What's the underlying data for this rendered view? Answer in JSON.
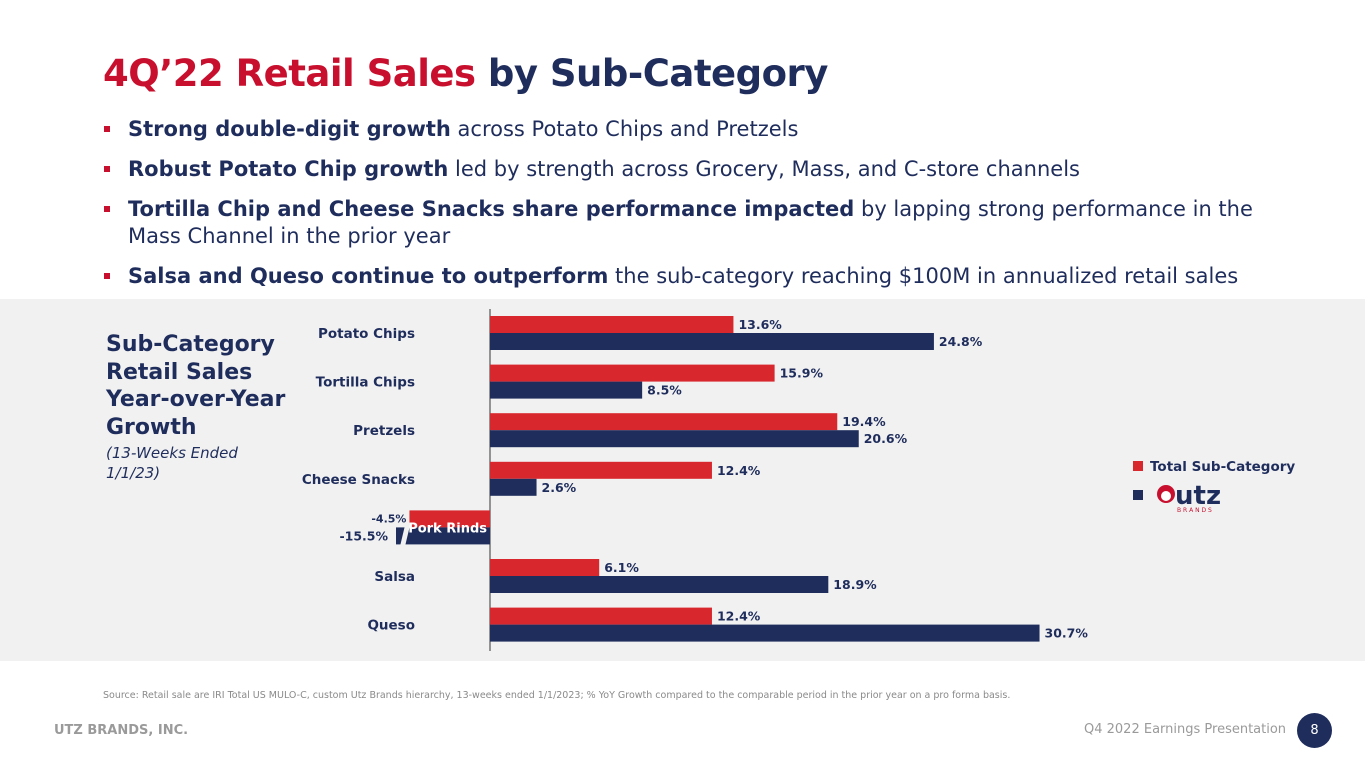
{
  "title": {
    "part1": "4Q’22 Retail Sales",
    "part2": "by Sub-Category"
  },
  "bullets": [
    {
      "bold": "Strong double-digit growth",
      "rest": " across Potato Chips and Pretzels"
    },
    {
      "bold": "Robust Potato Chip growth",
      "rest": " led by strength across Grocery, Mass, and C-store channels"
    },
    {
      "bold": "Tortilla Chip and Cheese Snacks share performance impacted",
      "rest": " by lapping strong performance in the Mass Channel in the prior year"
    },
    {
      "bold": "Salsa and Queso continue to outperform",
      "rest": " the sub-category reaching $100M in annualized retail sales"
    }
  ],
  "subheading": {
    "title": "Sub-Category Retail Sales Year-over-Year Growth",
    "period": "(13-Weeks Ended 1/1/23)"
  },
  "chart_data": {
    "type": "bar",
    "orientation": "horizontal",
    "categories": [
      "Potato Chips",
      "Tortilla Chips",
      "Pretzels",
      "Cheese Snacks",
      "Pork Rinds",
      "Salsa",
      "Queso"
    ],
    "series": [
      {
        "name": "Total Sub-Category",
        "color": "#d9272e",
        "values": [
          13.6,
          15.9,
          19.4,
          12.4,
          -4.5,
          6.1,
          12.4
        ],
        "labels": [
          "13.6%",
          "15.9%",
          "19.4%",
          "12.4%",
          "-4.5%",
          "6.1%",
          "12.4%"
        ]
      },
      {
        "name": "Utz Brands",
        "color": "#1f2d5c",
        "values": [
          24.8,
          8.5,
          20.6,
          2.6,
          -15.5,
          18.9,
          30.7
        ],
        "labels": [
          "24.8%",
          "8.5%",
          "20.6%",
          "2.6%",
          "-15.5%",
          "18.9%",
          "30.7%"
        ]
      }
    ],
    "axis_break": "Pork Rinds Utz Brands bar truncated",
    "legend": {
      "position": "right",
      "entries": [
        "Total Sub-Category",
        "UTZ BRANDS"
      ]
    },
    "grid": false
  },
  "logo": {
    "word": "utz",
    "sub": "B R A N D S"
  },
  "footer": {
    "source": "Source: Retail sale are IRI Total US MULO-C, custom Utz Brands hierarchy, 13-weeks ended 1/1/2023; % YoY Growth compared to the comparable period in the prior year on a pro forma basis.",
    "company": "UTZ BRANDS, INC.",
    "presentation": "Q4 2022 Earnings Presentation",
    "page": "8"
  },
  "colors": {
    "red": "#c8102e",
    "navy": "#1f2d5c",
    "panel": "#f1f1f1"
  }
}
